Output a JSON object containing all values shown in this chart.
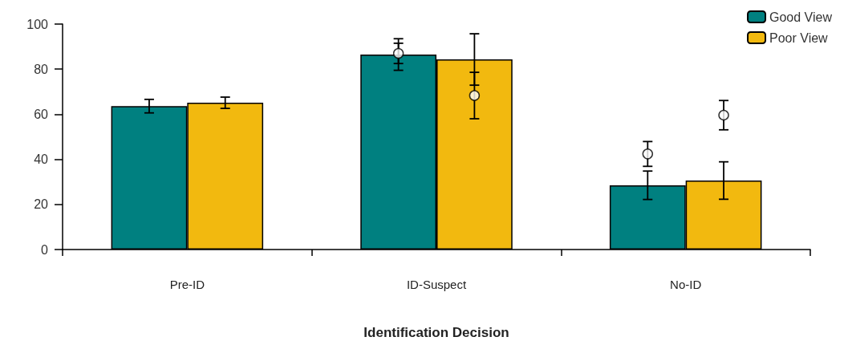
{
  "chart_data": {
    "type": "bar",
    "xlabel": "Identification Decision",
    "categories": [
      "Pre-ID",
      "ID-Suspect",
      "No-ID"
    ],
    "ylim": [
      0,
      100
    ],
    "yticks": [
      0,
      20,
      40,
      60,
      80,
      100
    ],
    "grid": false,
    "legend": "top right",
    "series": [
      {
        "name": "Good View",
        "color": "#008080",
        "values": [
          63.6,
          86.5,
          28.5
        ],
        "errors": [
          3,
          7,
          6.3
        ]
      },
      {
        "name": "Poor View",
        "color": "#f2b90f",
        "values": [
          65.1,
          84.3,
          30.6
        ],
        "errors": [
          2.5,
          11.4,
          8.3
        ]
      },
      {
        "type": "scatter",
        "color": "#ffffff",
        "marker": "circle",
        "x": [
          "Pre-ID",
          "ID-Suspect",
          "No-ID"
        ],
        "values": [
          null,
          87,
          42.4
        ],
        "errors": [
          null,
          4.5,
          5.5
        ]
      },
      {
        "type": "scatter",
        "color": "#ffffff",
        "marker": "circle",
        "x": [
          "Pre-ID",
          "ID-Suspect",
          "No-ID"
        ],
        "values": [
          null,
          68.3,
          59.6
        ],
        "errors": [
          null,
          10.3,
          6.5
        ]
      }
    ]
  }
}
